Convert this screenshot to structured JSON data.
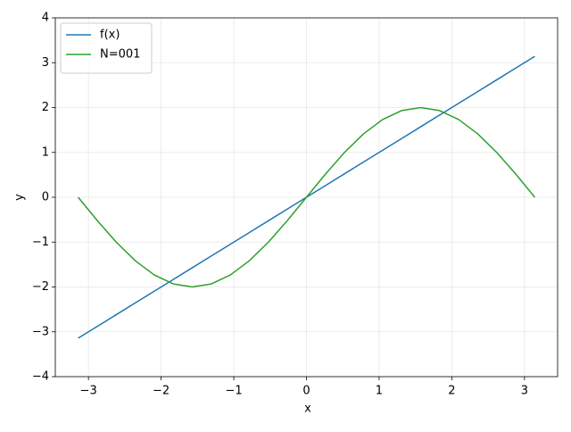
{
  "chart_data": {
    "type": "line",
    "xlabel": "x",
    "ylabel": "y",
    "x": [
      -3.1416,
      -2.8798,
      -2.618,
      -2.3562,
      -2.0944,
      -1.8326,
      -1.5708,
      -1.309,
      -1.0472,
      -0.7854,
      -0.5236,
      -0.2618,
      0,
      0.2618,
      0.5236,
      0.7854,
      1.0472,
      1.309,
      1.5708,
      1.8326,
      2.0944,
      2.3562,
      2.618,
      2.8798,
      3.1416
    ],
    "series": [
      {
        "name": "f(x)",
        "color": "#1f77b4",
        "values": [
          -3.1416,
          -2.8798,
          -2.618,
          -2.3562,
          -2.0944,
          -1.8326,
          -1.5708,
          -1.309,
          -1.0472,
          -0.7854,
          -0.5236,
          -0.2618,
          0,
          0.2618,
          0.5236,
          0.7854,
          1.0472,
          1.309,
          1.5708,
          1.8326,
          2.0944,
          2.3562,
          2.618,
          2.8798,
          3.1416
        ]
      },
      {
        "name": "N=001",
        "color": "#2ca02c",
        "values": [
          0,
          -0.5176,
          -1,
          -1.4142,
          -1.7321,
          -1.9319,
          -2,
          -1.9319,
          -1.7321,
          -1.4142,
          -1,
          -0.5176,
          0,
          0.5176,
          1,
          1.4142,
          1.7321,
          1.9319,
          2,
          1.9319,
          1.7321,
          1.4142,
          1,
          0.5176,
          0
        ]
      }
    ],
    "xlim": [
      -3.456,
      3.456
    ],
    "xticks": [
      {
        "value": -3,
        "label": "−3"
      },
      {
        "value": -2,
        "label": "−2"
      },
      {
        "value": -1,
        "label": "−1"
      },
      0,
      1,
      2,
      3
    ],
    "ylim": [
      -4,
      4
    ],
    "yticks": [
      {
        "value": -4,
        "label": "−4"
      },
      {
        "value": -3,
        "label": "−3"
      },
      {
        "value": -2,
        "label": "−2"
      },
      {
        "value": -1,
        "label": "−1"
      },
      0,
      1,
      2,
      3,
      4
    ],
    "grid": true,
    "legend": "upper left"
  }
}
